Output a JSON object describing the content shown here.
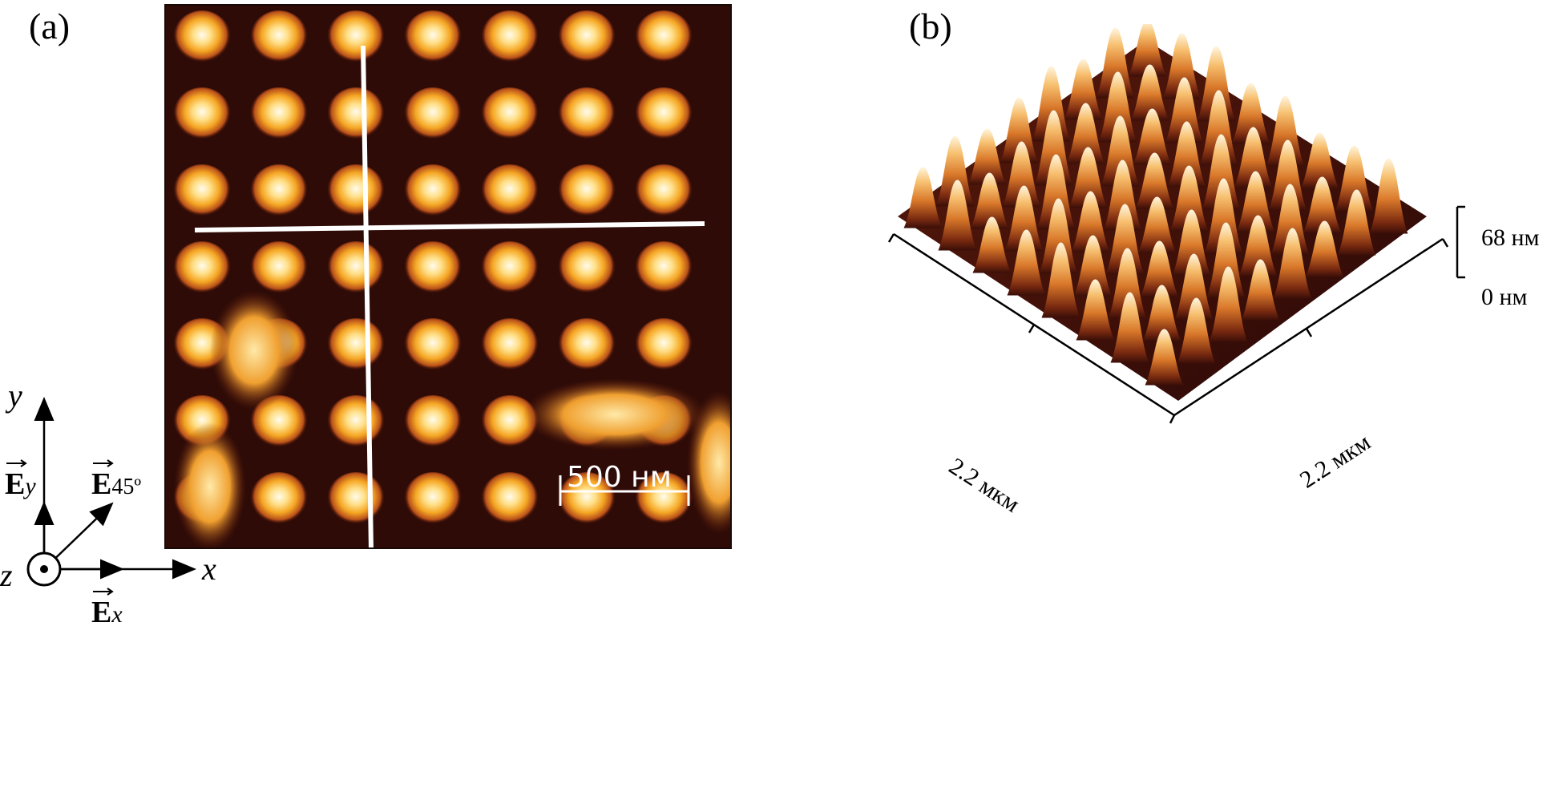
{
  "panel_a": {
    "label": "(a)",
    "scale_bar_text": "500 нм",
    "colors": {
      "background": "#2a0a06",
      "particle_core": "#fff6e0",
      "particle_mid": "#f5a623",
      "particle_edge": "#7a2a0e",
      "line_profile": "#ffffff"
    }
  },
  "coord_system": {
    "y_axis": "y",
    "x_axis": "x",
    "z_axis": "z",
    "e_y_main": "E",
    "e_y_sub": "y",
    "e_45_main": "E",
    "e_45_sub": "45º",
    "e_x_main": "E",
    "e_x_sub": "x"
  },
  "panel_b": {
    "label": "(b)",
    "z_top": "68 нм",
    "z_bottom": "0 нм",
    "x_dim": "2.2 мкм",
    "y_dim": "2.2 мкм",
    "colors": {
      "peak_top": "#fff3d6",
      "peak_mid": "#e8962a",
      "peak_base": "#3a0e08"
    }
  }
}
